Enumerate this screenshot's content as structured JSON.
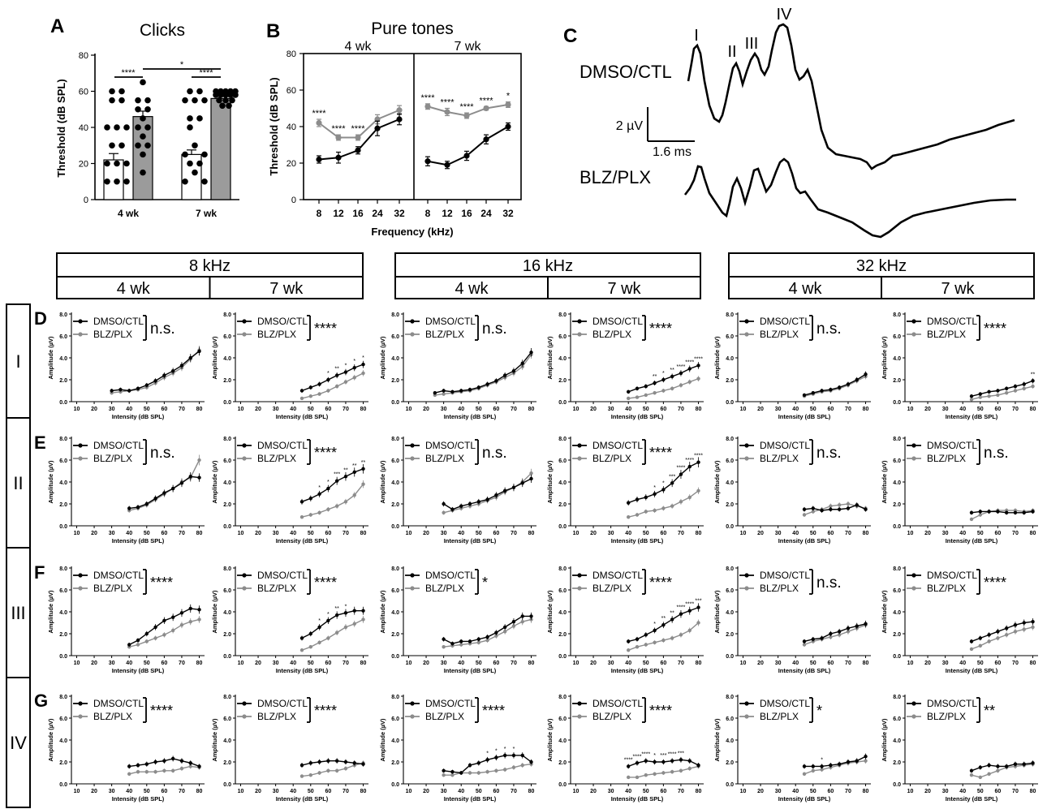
{
  "panel_letters": {
    "A": "A",
    "B": "B",
    "C": "C",
    "D": "D",
    "E": "E",
    "F": "F",
    "G": "G"
  },
  "header": {
    "frequencies": [
      "8 kHz",
      "16 kHz",
      "32 kHz"
    ],
    "ages": [
      "4 wk",
      "7 wk"
    ],
    "waves": [
      "I",
      "II",
      "III",
      "IV"
    ]
  },
  "colors": {
    "dmso": "#000000",
    "blz": "#8c8c8c",
    "blz_bar": "#9b9b9b"
  },
  "legend": {
    "dmso": "DMSO/CTL",
    "blz": "BLZ/PLX"
  },
  "abr_axes": {
    "xlabel": "Intensity (dB SPL)",
    "ylabel": "Amplitude (µV)",
    "xticks": [
      "10",
      "20",
      "30",
      "40",
      "50",
      "60",
      "70",
      "80"
    ],
    "yticks": [
      "0.0",
      "2.0",
      "4.0",
      "6.0",
      "8.0"
    ]
  },
  "traces": {
    "dmso_label": "DMSO/CTL",
    "blz_label": "BLZ/PLX",
    "peaks": [
      "I",
      "II",
      "III",
      "IV"
    ],
    "scale_v": "2 µV",
    "scale_t": "1.6 ms"
  },
  "chart_data": [
    {
      "id": "A",
      "type": "bar",
      "title": "Clicks",
      "ylabel": "Threshold (dB SPL)",
      "ylim": [
        0,
        80
      ],
      "yticks": [
        "0",
        "20",
        "40",
        "60",
        "80"
      ],
      "categories": [
        "4 wk",
        "7 wk"
      ],
      "series": [
        {
          "name": "DMSO/CTL",
          "values": [
            22,
            25
          ],
          "err": [
            3.5,
            2.5
          ]
        },
        {
          "name": "BLZ/PLX",
          "values": [
            46,
            56
          ],
          "err": [
            3,
            1.5
          ]
        }
      ],
      "significance": [
        "****",
        "****",
        "*"
      ]
    },
    {
      "id": "B",
      "type": "line",
      "title": "Pure tones",
      "ylabel": "Threshold (dB SPL)",
      "xlabel": "Frequency (kHz)",
      "ylim": [
        0,
        80
      ],
      "yticks": [
        "0",
        "20",
        "40",
        "60",
        "80"
      ],
      "panels": [
        {
          "label": "4 wk",
          "x": [
            "8",
            "12",
            "16",
            "24",
            "32"
          ],
          "dmso": [
            22,
            23,
            27,
            39,
            44
          ],
          "dmso_err": [
            2,
            3,
            2,
            4,
            3
          ],
          "blz": [
            42,
            34,
            34,
            44,
            49
          ],
          "blz_err": [
            2,
            1.5,
            1.5,
            2.5,
            2.5
          ],
          "sig": [
            "****",
            "****",
            "****",
            "",
            ""
          ]
        },
        {
          "label": "7 wk",
          "x": [
            "8",
            "12",
            "16",
            "24",
            "32"
          ],
          "dmso": [
            21,
            19,
            24,
            33,
            40
          ],
          "dmso_err": [
            2.5,
            2,
            2.5,
            2.5,
            2
          ],
          "blz": [
            51,
            48,
            46,
            50,
            52
          ],
          "blz_err": [
            1.5,
            2,
            1.5,
            1,
            1.5
          ],
          "sig": [
            "****",
            "****",
            "****",
            "****",
            "*"
          ]
        }
      ]
    },
    {
      "id": "D-8k-4wk",
      "type": "line",
      "wave": "I",
      "freq": "8 kHz",
      "age": "4 wk",
      "result": "n.s.",
      "x": [
        30,
        35,
        40,
        45,
        50,
        55,
        60,
        65,
        70,
        75,
        80
      ],
      "dmso": [
        1.0,
        1.1,
        1.0,
        1.2,
        1.5,
        1.9,
        2.4,
        2.8,
        3.3,
        4.0,
        4.6
      ],
      "blz": [
        0.8,
        0.9,
        1.0,
        1.1,
        1.3,
        1.7,
        2.2,
        2.6,
        3.1,
        3.9,
        4.7
      ],
      "sig": []
    },
    {
      "id": "D-8k-7wk",
      "type": "line",
      "wave": "I",
      "freq": "8 kHz",
      "age": "7 wk",
      "result": "****",
      "x": [
        45,
        50,
        55,
        60,
        65,
        70,
        75,
        80
      ],
      "dmso": [
        1.0,
        1.3,
        1.6,
        2.0,
        2.4,
        2.7,
        3.1,
        3.4
      ],
      "blz": [
        0.3,
        0.5,
        0.7,
        1.0,
        1.4,
        1.8,
        2.2,
        2.6
      ],
      "sig": [
        "",
        "",
        "",
        "*",
        "**",
        "*",
        "*",
        "*"
      ]
    },
    {
      "id": "D-16k-4wk",
      "type": "line",
      "wave": "I",
      "freq": "16 kHz",
      "age": "4 wk",
      "result": "n.s.",
      "x": [
        25,
        30,
        35,
        40,
        45,
        50,
        55,
        60,
        65,
        70,
        75,
        80
      ],
      "dmso": [
        0.8,
        1.0,
        0.9,
        1.0,
        1.1,
        1.3,
        1.6,
        1.9,
        2.4,
        2.8,
        3.5,
        4.5
      ],
      "blz": [
        0.6,
        0.7,
        0.8,
        0.9,
        1.0,
        1.2,
        1.5,
        1.8,
        2.2,
        2.6,
        3.2,
        4.3
      ],
      "sig": []
    },
    {
      "id": "D-16k-7wk",
      "type": "line",
      "wave": "I",
      "freq": "16 kHz",
      "age": "7 wk",
      "result": "****",
      "x": [
        40,
        45,
        50,
        55,
        60,
        65,
        70,
        75,
        80
      ],
      "dmso": [
        0.9,
        1.2,
        1.4,
        1.7,
        2.0,
        2.3,
        2.6,
        3.0,
        3.3
      ],
      "blz": [
        0.3,
        0.4,
        0.6,
        0.8,
        1.0,
        1.2,
        1.5,
        1.8,
        2.1
      ],
      "sig": [
        "",
        "",
        "",
        "**",
        "*",
        "**",
        "****",
        "****",
        "****"
      ]
    },
    {
      "id": "D-32k-4wk",
      "type": "line",
      "wave": "I",
      "freq": "32 kHz",
      "age": "4 wk",
      "result": "n.s.",
      "x": [
        45,
        50,
        55,
        60,
        65,
        70,
        75,
        80
      ],
      "dmso": [
        0.6,
        0.8,
        1.0,
        1.1,
        1.3,
        1.6,
        2.0,
        2.5
      ],
      "blz": [
        0.5,
        0.7,
        0.9,
        1.0,
        1.2,
        1.5,
        1.9,
        2.3
      ],
      "sig": []
    },
    {
      "id": "D-32k-7wk",
      "type": "line",
      "wave": "I",
      "freq": "32 kHz",
      "age": "7 wk",
      "result": "****",
      "x": [
        45,
        50,
        55,
        60,
        65,
        70,
        75,
        80
      ],
      "dmso": [
        0.5,
        0.7,
        0.9,
        1.0,
        1.2,
        1.4,
        1.6,
        1.9
      ],
      "blz": [
        0.2,
        0.4,
        0.5,
        0.6,
        0.8,
        1.0,
        1.2,
        1.4
      ],
      "sig": [
        "",
        "",
        "",
        "",
        "",
        "",
        "",
        "**"
      ]
    },
    {
      "id": "E-8k-4wk",
      "type": "line",
      "wave": "II",
      "freq": "8 kHz",
      "age": "4 wk",
      "result": "n.s.",
      "x": [
        40,
        45,
        50,
        55,
        60,
        65,
        70,
        75,
        80
      ],
      "dmso": [
        1.6,
        1.7,
        2.0,
        2.5,
        3.0,
        3.4,
        3.9,
        4.5,
        4.4
      ],
      "blz": [
        1.4,
        1.6,
        1.9,
        2.4,
        2.9,
        3.4,
        4.0,
        4.4,
        6.0
      ],
      "sig": []
    },
    {
      "id": "E-8k-7wk",
      "type": "line",
      "wave": "II",
      "freq": "8 kHz",
      "age": "7 wk",
      "result": "****",
      "x": [
        45,
        50,
        55,
        60,
        65,
        70,
        75,
        80
      ],
      "dmso": [
        2.2,
        2.5,
        2.9,
        3.4,
        4.1,
        4.5,
        4.9,
        5.2
      ],
      "blz": [
        0.8,
        1.0,
        1.2,
        1.5,
        1.8,
        2.2,
        2.8,
        3.8
      ],
      "sig": [
        "",
        "",
        "*",
        "*",
        "***",
        "**",
        "**",
        "**"
      ]
    },
    {
      "id": "E-16k-4wk",
      "type": "line",
      "wave": "II",
      "freq": "16 kHz",
      "age": "4 wk",
      "result": "n.s.",
      "x": [
        30,
        35,
        40,
        45,
        50,
        55,
        60,
        65,
        70,
        75,
        80
      ],
      "dmso": [
        2.0,
        1.5,
        1.8,
        2.0,
        2.2,
        2.4,
        2.8,
        3.2,
        3.5,
        3.9,
        4.3
      ],
      "blz": [
        1.2,
        1.4,
        1.6,
        1.8,
        2.0,
        2.3,
        2.6,
        3.1,
        3.5,
        4.0,
        4.8
      ],
      "sig": []
    },
    {
      "id": "E-16k-7wk",
      "type": "line",
      "wave": "II",
      "freq": "16 kHz",
      "age": "7 wk",
      "result": "****",
      "x": [
        40,
        45,
        50,
        55,
        60,
        65,
        70,
        75,
        80
      ],
      "dmso": [
        2.1,
        2.4,
        2.6,
        2.9,
        3.3,
        3.9,
        4.7,
        5.4,
        5.8
      ],
      "blz": [
        0.8,
        1.0,
        1.3,
        1.4,
        1.6,
        1.8,
        2.2,
        2.6,
        3.2
      ],
      "sig": [
        "",
        "",
        "",
        "*",
        "*",
        "***",
        "****",
        "****",
        "****"
      ]
    },
    {
      "id": "E-32k-4wk",
      "type": "line",
      "wave": "II",
      "freq": "32 kHz",
      "age": "4 wk",
      "result": "n.s.",
      "x": [
        45,
        50,
        55,
        60,
        65,
        70,
        75,
        80
      ],
      "dmso": [
        1.5,
        1.6,
        1.4,
        1.5,
        1.5,
        1.6,
        1.9,
        1.5
      ],
      "blz": [
        1.0,
        1.3,
        1.5,
        1.8,
        1.9,
        2.0,
        1.8,
        1.6
      ],
      "sig": []
    },
    {
      "id": "E-32k-7wk",
      "type": "line",
      "wave": "II",
      "freq": "32 kHz",
      "age": "7 wk",
      "result": "n.s.",
      "x": [
        45,
        50,
        55,
        60,
        65,
        70,
        75,
        80
      ],
      "dmso": [
        1.2,
        1.3,
        1.3,
        1.3,
        1.2,
        1.2,
        1.2,
        1.3
      ],
      "blz": [
        0.6,
        1.0,
        1.3,
        1.4,
        1.4,
        1.4,
        1.3,
        1.4
      ],
      "sig": []
    },
    {
      "id": "F-8k-4wk",
      "type": "line",
      "wave": "III",
      "freq": "8 kHz",
      "age": "4 wk",
      "result": "****",
      "x": [
        40,
        45,
        50,
        55,
        60,
        65,
        70,
        75,
        80
      ],
      "dmso": [
        1.0,
        1.4,
        2.0,
        2.6,
        3.2,
        3.5,
        3.9,
        4.3,
        4.2
      ],
      "blz": [
        0.8,
        1.0,
        1.3,
        1.6,
        1.9,
        2.3,
        2.8,
        3.1,
        3.3
      ],
      "sig": []
    },
    {
      "id": "F-8k-7wk",
      "type": "line",
      "wave": "III",
      "freq": "8 kHz",
      "age": "7 wk",
      "result": "****",
      "x": [
        45,
        50,
        55,
        60,
        65,
        70,
        75,
        80
      ],
      "dmso": [
        1.6,
        2.0,
        2.6,
        3.2,
        3.7,
        3.9,
        4.1,
        4.1
      ],
      "blz": [
        0.5,
        0.8,
        1.2,
        1.6,
        2.1,
        2.6,
        2.9,
        3.3
      ],
      "sig": [
        "",
        "",
        "*",
        "*",
        "**",
        "*",
        "",
        ""
      ]
    },
    {
      "id": "F-16k-4wk",
      "type": "line",
      "wave": "III",
      "freq": "16 kHz",
      "age": "4 wk",
      "result": "*",
      "x": [
        30,
        35,
        40,
        45,
        50,
        55,
        60,
        65,
        70,
        75,
        80
      ],
      "dmso": [
        1.5,
        1.1,
        1.3,
        1.3,
        1.5,
        1.7,
        2.1,
        2.6,
        3.1,
        3.6,
        3.6
      ],
      "blz": [
        0.8,
        0.9,
        1.0,
        1.1,
        1.2,
        1.4,
        1.8,
        2.2,
        2.7,
        3.1,
        3.3
      ],
      "sig": []
    },
    {
      "id": "F-16k-7wk",
      "type": "line",
      "wave": "III",
      "freq": "16 kHz",
      "age": "7 wk",
      "result": "****",
      "x": [
        40,
        45,
        50,
        55,
        60,
        65,
        70,
        75,
        80
      ],
      "dmso": [
        1.3,
        1.5,
        1.9,
        2.3,
        2.8,
        3.3,
        3.8,
        4.1,
        4.4
      ],
      "blz": [
        0.5,
        0.8,
        1.0,
        1.2,
        1.4,
        1.6,
        1.9,
        2.3,
        3.0
      ],
      "sig": [
        "",
        "",
        "",
        "*",
        "**",
        "**",
        "****",
        "****",
        "***"
      ]
    },
    {
      "id": "F-32k-4wk",
      "type": "line",
      "wave": "III",
      "freq": "32 kHz",
      "age": "4 wk",
      "result": "n.s.",
      "x": [
        45,
        50,
        55,
        60,
        65,
        70,
        75,
        80
      ],
      "dmso": [
        1.3,
        1.5,
        1.6,
        2.0,
        2.2,
        2.5,
        2.7,
        2.9
      ],
      "blz": [
        1.0,
        1.3,
        1.5,
        1.7,
        1.9,
        2.2,
        2.5,
        2.8
      ],
      "sig": []
    },
    {
      "id": "F-32k-7wk",
      "type": "line",
      "wave": "III",
      "freq": "32 kHz",
      "age": "7 wk",
      "result": "****",
      "x": [
        45,
        50,
        55,
        60,
        65,
        70,
        75,
        80
      ],
      "dmso": [
        1.3,
        1.6,
        1.9,
        2.2,
        2.5,
        2.8,
        3.0,
        3.1
      ],
      "blz": [
        0.6,
        0.9,
        1.3,
        1.6,
        1.9,
        2.2,
        2.4,
        2.6
      ],
      "sig": []
    },
    {
      "id": "G-8k-4wk",
      "type": "line",
      "wave": "IV",
      "freq": "8 kHz",
      "age": "4 wk",
      "result": "****",
      "x": [
        40,
        45,
        50,
        55,
        60,
        65,
        70,
        75,
        80
      ],
      "dmso": [
        1.6,
        1.7,
        1.8,
        2.0,
        2.1,
        2.3,
        2.1,
        1.9,
        1.6
      ],
      "blz": [
        0.9,
        1.1,
        1.1,
        1.1,
        1.2,
        1.2,
        1.4,
        1.6,
        1.5
      ],
      "sig": []
    },
    {
      "id": "G-8k-7wk",
      "type": "line",
      "wave": "IV",
      "freq": "8 kHz",
      "age": "7 wk",
      "result": "****",
      "x": [
        45,
        50,
        55,
        60,
        65,
        70,
        75,
        80
      ],
      "dmso": [
        1.7,
        1.9,
        2.0,
        2.1,
        2.1,
        2.0,
        1.9,
        1.8
      ],
      "blz": [
        0.7,
        0.8,
        1.0,
        1.2,
        1.2,
        1.4,
        1.7,
        1.9
      ],
      "sig": []
    },
    {
      "id": "G-16k-4wk",
      "type": "line",
      "wave": "IV",
      "freq": "16 kHz",
      "age": "4 wk",
      "result": "****",
      "x": [
        30,
        35,
        40,
        45,
        50,
        55,
        60,
        65,
        70,
        75,
        80
      ],
      "dmso": [
        1.2,
        1.1,
        1.0,
        1.7,
        1.9,
        2.2,
        2.4,
        2.6,
        2.6,
        2.6,
        2.0
      ],
      "blz": [
        0.8,
        0.8,
        1.0,
        1.0,
        1.0,
        1.1,
        1.2,
        1.3,
        1.5,
        1.7,
        1.8
      ],
      "sig": [
        "",
        "",
        "",
        "",
        "",
        "*",
        "*",
        "*",
        "*",
        "",
        ""
      ]
    },
    {
      "id": "G-16k-7wk",
      "type": "line",
      "wave": "IV",
      "freq": "16 kHz",
      "age": "7 wk",
      "result": "****",
      "x": [
        40,
        45,
        50,
        55,
        60,
        65,
        70,
        75,
        80
      ],
      "dmso": [
        1.6,
        1.9,
        2.1,
        2.0,
        2.0,
        2.1,
        2.2,
        2.1,
        1.7
      ],
      "blz": [
        0.6,
        0.6,
        0.8,
        0.9,
        1.0,
        1.1,
        1.2,
        1.4,
        1.6
      ],
      "sig": [
        "****",
        "****",
        "****",
        "*",
        "***",
        "****",
        "***",
        "",
        ""
      ]
    },
    {
      "id": "G-32k-4wk",
      "type": "line",
      "wave": "IV",
      "freq": "32 kHz",
      "age": "4 wk",
      "result": "*",
      "x": [
        45,
        50,
        55,
        60,
        65,
        70,
        75,
        80
      ],
      "dmso": [
        1.6,
        1.6,
        1.6,
        1.7,
        1.8,
        2.0,
        2.1,
        2.5
      ],
      "blz": [
        0.9,
        1.2,
        1.3,
        1.5,
        1.7,
        1.9,
        2.0,
        2.1
      ],
      "sig": [
        "",
        "",
        "*",
        "",
        "",
        "",
        "",
        ""
      ]
    },
    {
      "id": "G-32k-7wk",
      "type": "line",
      "wave": "IV",
      "freq": "32 kHz",
      "age": "7 wk",
      "result": "**",
      "x": [
        45,
        50,
        55,
        60,
        65,
        70,
        75,
        80
      ],
      "dmso": [
        1.2,
        1.5,
        1.7,
        1.6,
        1.6,
        1.8,
        1.8,
        1.9
      ],
      "blz": [
        0.8,
        0.6,
        0.9,
        1.2,
        1.5,
        1.6,
        1.7,
        1.8
      ],
      "sig": []
    }
  ]
}
